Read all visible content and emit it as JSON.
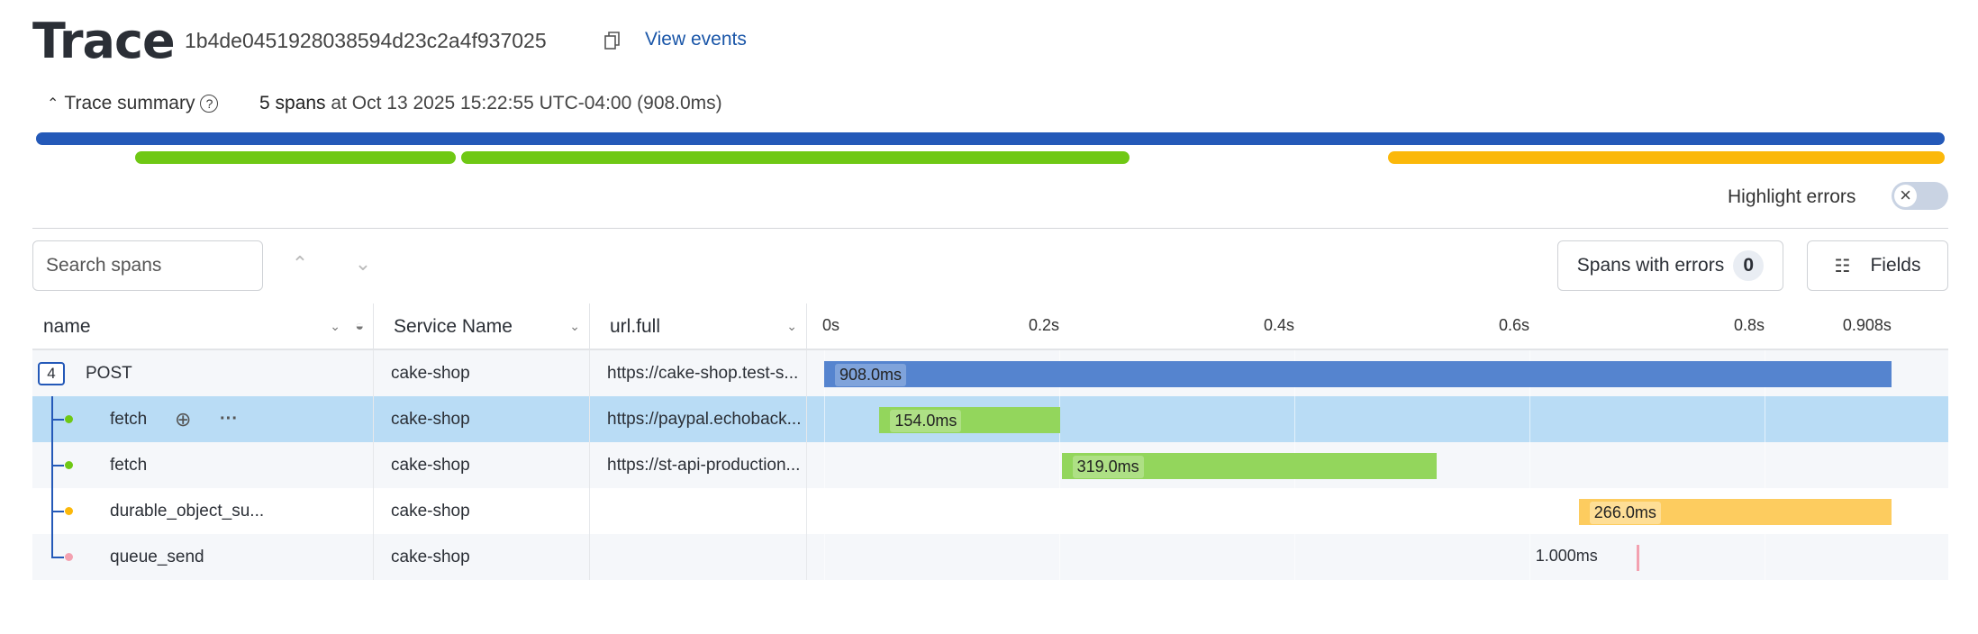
{
  "header": {
    "title": "Trace",
    "trace_id": "1b4de0451928038594d23c2a4f937025",
    "view_events": "View events"
  },
  "summary": {
    "toggle_label": "Trace summary",
    "span_count": "5 spans",
    "at": "at",
    "timestamp": "Oct 13 2025 15:22:55 UTC-04:00",
    "duration": "(908.0ms)"
  },
  "highlight_errors": {
    "label": "Highlight errors",
    "enabled": false
  },
  "search": {
    "placeholder": "Search spans",
    "value": ""
  },
  "buttons": {
    "spans_with_errors": "Spans with errors",
    "error_count": "0",
    "fields": "Fields"
  },
  "columns": {
    "name": "name",
    "service": "Service Name",
    "url": "url.full"
  },
  "timeline": {
    "ticks": [
      "0s",
      "0.2s",
      "0.4s",
      "0.6s",
      "0.8s",
      "0.908s"
    ],
    "tick_values": [
      0,
      0.2,
      0.4,
      0.6,
      0.8,
      0.908
    ],
    "total_ms": 908
  },
  "colors": {
    "blue": "#2459b8",
    "green": "#6fc814",
    "yellow": "#fbb80a",
    "pink": "#f3a1b0",
    "blue_bar": "#5584cf",
    "green_bar": "#93d65c",
    "yellow_bar": "#fdcc5f",
    "selected_row": "#b9dcf5"
  },
  "spans": [
    {
      "name": "POST",
      "service": "cake-shop",
      "url": "https://cake-shop.test-s...",
      "start_ms": 0,
      "duration_ms": 908,
      "label": "908.0ms",
      "color": "blue",
      "child_count": "4",
      "depth": 0
    },
    {
      "name": "fetch",
      "service": "cake-shop",
      "url": "https://paypal.echoback...",
      "start_ms": 47,
      "duration_ms": 154,
      "label": "154.0ms",
      "color": "green",
      "depth": 1,
      "selected": true
    },
    {
      "name": "fetch",
      "service": "cake-shop",
      "url": "https://st-api-production...",
      "start_ms": 202,
      "duration_ms": 319,
      "label": "319.0ms",
      "color": "green",
      "depth": 1
    },
    {
      "name": "durable_object_su...",
      "service": "cake-shop",
      "url": "",
      "start_ms": 642,
      "duration_ms": 266,
      "label": "266.0ms",
      "color": "yellow",
      "depth": 1
    },
    {
      "name": "queue_send",
      "service": "cake-shop",
      "url": "",
      "start_ms": 691,
      "duration_ms": 1,
      "label": "1.000ms",
      "color": "pink",
      "depth": 1
    }
  ]
}
